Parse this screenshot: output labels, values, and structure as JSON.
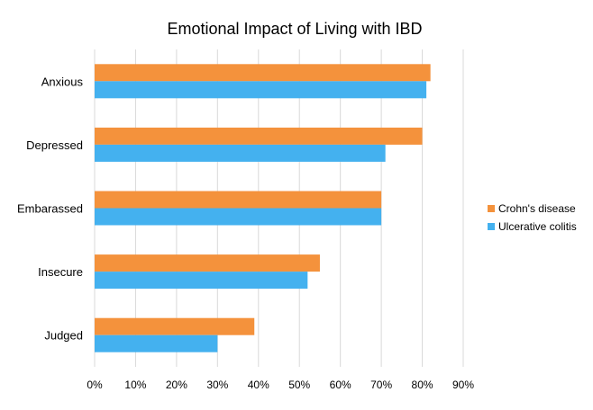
{
  "chart_data": {
    "type": "bar",
    "orientation": "horizontal",
    "title": "Emotional Impact of Living with IBD",
    "xlabel": "",
    "ylabel": "",
    "categories": [
      "Anxious",
      "Depressed",
      "Embarassed",
      "Insecure",
      "Judged"
    ],
    "series": [
      {
        "name": "Crohn's disease",
        "color": "#f4923c",
        "values": [
          82,
          80,
          70,
          55,
          39
        ]
      },
      {
        "name": "Ulcerative colitis",
        "color": "#44b1ef",
        "values": [
          81,
          71,
          70,
          52,
          30
        ]
      }
    ],
    "xlim": [
      0,
      90
    ],
    "xticks": [
      "0%",
      "10%",
      "20%",
      "30%",
      "40%",
      "50%",
      "60%",
      "70%",
      "80%",
      "90%"
    ],
    "grid": true,
    "legend_position": "right"
  }
}
